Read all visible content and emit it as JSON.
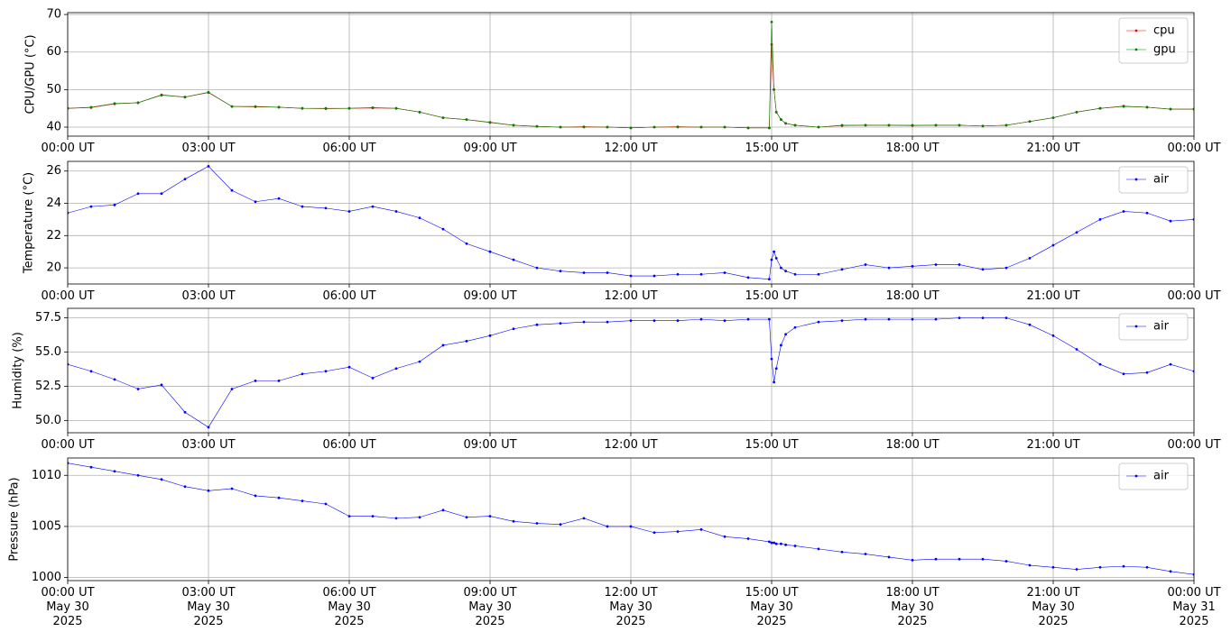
{
  "chart_data": [
    {
      "type": "line",
      "ylabel": "CPU/GPU (°C)",
      "x": [
        "2025-05-30 00:00",
        "2025-05-30 00:30",
        "2025-05-30 01:00",
        "2025-05-30 01:30",
        "2025-05-30 02:00",
        "2025-05-30 02:30",
        "2025-05-30 03:00",
        "2025-05-30 03:30",
        "2025-05-30 04:00",
        "2025-05-30 04:30",
        "2025-05-30 05:00",
        "2025-05-30 05:30",
        "2025-05-30 06:00",
        "2025-05-30 06:30",
        "2025-05-30 07:00",
        "2025-05-30 07:30",
        "2025-05-30 08:00",
        "2025-05-30 08:30",
        "2025-05-30 09:00",
        "2025-05-30 09:30",
        "2025-05-30 10:00",
        "2025-05-30 10:30",
        "2025-05-30 11:00",
        "2025-05-30 11:30",
        "2025-05-30 12:00",
        "2025-05-30 12:30",
        "2025-05-30 13:00",
        "2025-05-30 13:30",
        "2025-05-30 14:00",
        "2025-05-30 14:30",
        "2025-05-30 14:57",
        "2025-05-30 15:00",
        "2025-05-30 15:03",
        "2025-05-30 15:06",
        "2025-05-30 15:12",
        "2025-05-30 15:18",
        "2025-05-30 15:30",
        "2025-05-30 16:00",
        "2025-05-30 16:30",
        "2025-05-30 17:00",
        "2025-05-30 17:30",
        "2025-05-30 18:00",
        "2025-05-30 18:30",
        "2025-05-30 19:00",
        "2025-05-30 19:30",
        "2025-05-30 20:00",
        "2025-05-30 20:30",
        "2025-05-30 21:00",
        "2025-05-30 21:30",
        "2025-05-30 22:00",
        "2025-05-30 22:30",
        "2025-05-30 23:00",
        "2025-05-30 23:30",
        "2025-05-31 00:00"
      ],
      "xlim": [
        "2025-05-30 00:00",
        "2025-05-31 00:00"
      ],
      "xticks": [
        {
          "value": "2025-05-30 00:00",
          "label": "00:00 UT"
        },
        {
          "value": "2025-05-30 03:00",
          "label": "03:00 UT"
        },
        {
          "value": "2025-05-30 06:00",
          "label": "06:00 UT"
        },
        {
          "value": "2025-05-30 09:00",
          "label": "09:00 UT"
        },
        {
          "value": "2025-05-30 12:00",
          "label": "12:00 UT"
        },
        {
          "value": "2025-05-30 15:00",
          "label": "15:00 UT"
        },
        {
          "value": "2025-05-30 18:00",
          "label": "18:00 UT"
        },
        {
          "value": "2025-05-30 21:00",
          "label": "21:00 UT"
        },
        {
          "value": "2025-05-31 00:00",
          "label": "00:00 UT"
        }
      ],
      "ylim": [
        37.6,
        70.5
      ],
      "yticks": [
        40,
        50,
        60,
        70
      ],
      "grid": true,
      "legend": "upper right",
      "series": [
        {
          "name": "cpu",
          "color": "#ff0000",
          "values": [
            45,
            45.2,
            46.2,
            46.5,
            48.6,
            48,
            49.2,
            45.5,
            45.4,
            45.3,
            45,
            44.9,
            45,
            45.1,
            45,
            44,
            42.5,
            42,
            41.2,
            40.5,
            40.2,
            40,
            40.1,
            40,
            39.8,
            40,
            40.1,
            40,
            40,
            39.8,
            39.8,
            62,
            50,
            44,
            42,
            41,
            40.5,
            40,
            40.4,
            40.5,
            40.5,
            40.4,
            40.5,
            40.5,
            40.3,
            40.5,
            41.5,
            42.5,
            44,
            45,
            45.6,
            45.3,
            44.8,
            44.8
          ]
        },
        {
          "name": "gpu",
          "color": "#008000",
          "values": [
            45,
            45.3,
            46.3,
            46.5,
            48.5,
            48,
            49.3,
            45.5,
            45.5,
            45.3,
            45,
            45,
            45,
            45.2,
            45,
            44,
            42.5,
            42,
            41.3,
            40.5,
            40.2,
            40,
            40,
            40,
            39.8,
            40,
            40,
            40,
            40,
            39.8,
            39.8,
            68,
            50,
            44,
            42,
            41,
            40.5,
            40,
            40.5,
            40.5,
            40.5,
            40.5,
            40.5,
            40.5,
            40.3,
            40.5,
            41.5,
            42.5,
            44,
            45,
            45.5,
            45.3,
            44.8,
            44.8
          ]
        }
      ]
    },
    {
      "type": "line",
      "ylabel": "Temperature (°C)",
      "x": [
        "2025-05-30 00:00",
        "2025-05-30 00:30",
        "2025-05-30 01:00",
        "2025-05-30 01:30",
        "2025-05-30 02:00",
        "2025-05-30 02:30",
        "2025-05-30 03:00",
        "2025-05-30 03:30",
        "2025-05-30 04:00",
        "2025-05-30 04:30",
        "2025-05-30 05:00",
        "2025-05-30 05:30",
        "2025-05-30 06:00",
        "2025-05-30 06:30",
        "2025-05-30 07:00",
        "2025-05-30 07:30",
        "2025-05-30 08:00",
        "2025-05-30 08:30",
        "2025-05-30 09:00",
        "2025-05-30 09:30",
        "2025-05-30 10:00",
        "2025-05-30 10:30",
        "2025-05-30 11:00",
        "2025-05-30 11:30",
        "2025-05-30 12:00",
        "2025-05-30 12:30",
        "2025-05-30 13:00",
        "2025-05-30 13:30",
        "2025-05-30 14:00",
        "2025-05-30 14:30",
        "2025-05-30 14:57",
        "2025-05-30 15:00",
        "2025-05-30 15:03",
        "2025-05-30 15:06",
        "2025-05-30 15:12",
        "2025-05-30 15:18",
        "2025-05-30 15:30",
        "2025-05-30 16:00",
        "2025-05-30 16:30",
        "2025-05-30 17:00",
        "2025-05-30 17:30",
        "2025-05-30 18:00",
        "2025-05-30 18:30",
        "2025-05-30 19:00",
        "2025-05-30 19:30",
        "2025-05-30 20:00",
        "2025-05-30 20:30",
        "2025-05-30 21:00",
        "2025-05-30 21:30",
        "2025-05-30 22:00",
        "2025-05-30 22:30",
        "2025-05-30 23:00",
        "2025-05-30 23:30",
        "2025-05-31 00:00"
      ],
      "xlim": [
        "2025-05-30 00:00",
        "2025-05-31 00:00"
      ],
      "xticks": [
        {
          "value": "2025-05-30 00:00",
          "label": "00:00 UT"
        },
        {
          "value": "2025-05-30 03:00",
          "label": "03:00 UT"
        },
        {
          "value": "2025-05-30 06:00",
          "label": "06:00 UT"
        },
        {
          "value": "2025-05-30 09:00",
          "label": "09:00 UT"
        },
        {
          "value": "2025-05-30 12:00",
          "label": "12:00 UT"
        },
        {
          "value": "2025-05-30 15:00",
          "label": "15:00 UT"
        },
        {
          "value": "2025-05-30 18:00",
          "label": "18:00 UT"
        },
        {
          "value": "2025-05-30 21:00",
          "label": "21:00 UT"
        },
        {
          "value": "2025-05-31 00:00",
          "label": "00:00 UT"
        }
      ],
      "ylim": [
        19.0,
        26.6
      ],
      "yticks": [
        20,
        22,
        24,
        26
      ],
      "grid": true,
      "legend": "upper right",
      "series": [
        {
          "name": "air",
          "color": "#0000ff",
          "values": [
            23.4,
            23.8,
            23.9,
            24.6,
            24.6,
            25.5,
            26.3,
            24.8,
            24.1,
            24.3,
            23.8,
            23.7,
            23.5,
            23.8,
            23.5,
            23.1,
            22.4,
            21.5,
            21.0,
            20.5,
            20.0,
            19.8,
            19.7,
            19.7,
            19.5,
            19.5,
            19.6,
            19.6,
            19.7,
            19.4,
            19.3,
            20.5,
            21.0,
            20.6,
            20.0,
            19.8,
            19.6,
            19.6,
            19.9,
            20.2,
            20.0,
            20.1,
            20.2,
            20.2,
            19.9,
            20.0,
            20.6,
            21.4,
            22.2,
            23.0,
            23.5,
            23.4,
            22.9,
            23.0
          ]
        }
      ]
    },
    {
      "type": "line",
      "ylabel": "Humidity (%)",
      "x": [
        "2025-05-30 00:00",
        "2025-05-30 00:30",
        "2025-05-30 01:00",
        "2025-05-30 01:30",
        "2025-05-30 02:00",
        "2025-05-30 02:30",
        "2025-05-30 03:00",
        "2025-05-30 03:30",
        "2025-05-30 04:00",
        "2025-05-30 04:30",
        "2025-05-30 05:00",
        "2025-05-30 05:30",
        "2025-05-30 06:00",
        "2025-05-30 06:30",
        "2025-05-30 07:00",
        "2025-05-30 07:30",
        "2025-05-30 08:00",
        "2025-05-30 08:30",
        "2025-05-30 09:00",
        "2025-05-30 09:30",
        "2025-05-30 10:00",
        "2025-05-30 10:30",
        "2025-05-30 11:00",
        "2025-05-30 11:30",
        "2025-05-30 12:00",
        "2025-05-30 12:30",
        "2025-05-30 13:00",
        "2025-05-30 13:30",
        "2025-05-30 14:00",
        "2025-05-30 14:30",
        "2025-05-30 14:57",
        "2025-05-30 15:00",
        "2025-05-30 15:03",
        "2025-05-30 15:06",
        "2025-05-30 15:12",
        "2025-05-30 15:18",
        "2025-05-30 15:30",
        "2025-05-30 16:00",
        "2025-05-30 16:30",
        "2025-05-30 17:00",
        "2025-05-30 17:30",
        "2025-05-30 18:00",
        "2025-05-30 18:30",
        "2025-05-30 19:00",
        "2025-05-30 19:30",
        "2025-05-30 20:00",
        "2025-05-30 20:30",
        "2025-05-30 21:00",
        "2025-05-30 21:30",
        "2025-05-30 22:00",
        "2025-05-30 22:30",
        "2025-05-30 23:00",
        "2025-05-30 23:30",
        "2025-05-31 00:00"
      ],
      "xlim": [
        "2025-05-30 00:00",
        "2025-05-31 00:00"
      ],
      "xticks": [
        {
          "value": "2025-05-30 00:00",
          "label": "00:00 UT"
        },
        {
          "value": "2025-05-30 03:00",
          "label": "03:00 UT"
        },
        {
          "value": "2025-05-30 06:00",
          "label": "06:00 UT"
        },
        {
          "value": "2025-05-30 09:00",
          "label": "09:00 UT"
        },
        {
          "value": "2025-05-30 12:00",
          "label": "12:00 UT"
        },
        {
          "value": "2025-05-30 15:00",
          "label": "15:00 UT"
        },
        {
          "value": "2025-05-30 18:00",
          "label": "18:00 UT"
        },
        {
          "value": "2025-05-30 21:00",
          "label": "21:00 UT"
        },
        {
          "value": "2025-05-31 00:00",
          "label": "00:00 UT"
        }
      ],
      "ylim": [
        49.1,
        58.2
      ],
      "yticks": [
        {
          "value": 50,
          "label": "50.0"
        },
        52.5,
        {
          "value": 55,
          "label": "55.0"
        },
        57.5
      ],
      "grid": true,
      "legend": "upper right",
      "series": [
        {
          "name": "air",
          "color": "#0000ff",
          "values": [
            54.1,
            53.6,
            53.0,
            52.3,
            52.6,
            50.6,
            49.5,
            52.3,
            52.9,
            52.9,
            53.4,
            53.6,
            53.9,
            53.1,
            53.8,
            54.3,
            55.5,
            55.8,
            56.2,
            56.7,
            57.0,
            57.1,
            57.2,
            57.2,
            57.3,
            57.3,
            57.3,
            57.4,
            57.3,
            57.4,
            57.4,
            54.5,
            52.8,
            53.8,
            55.5,
            56.3,
            56.8,
            57.2,
            57.3,
            57.4,
            57.4,
            57.4,
            57.4,
            57.5,
            57.5,
            57.5,
            57.0,
            56.2,
            55.2,
            54.1,
            53.4,
            53.5,
            54.1,
            53.6
          ]
        }
      ]
    },
    {
      "type": "line",
      "ylabel": "Pressure (hPa)",
      "x": [
        "2025-05-30 00:00",
        "2025-05-30 00:30",
        "2025-05-30 01:00",
        "2025-05-30 01:30",
        "2025-05-30 02:00",
        "2025-05-30 02:30",
        "2025-05-30 03:00",
        "2025-05-30 03:30",
        "2025-05-30 04:00",
        "2025-05-30 04:30",
        "2025-05-30 05:00",
        "2025-05-30 05:30",
        "2025-05-30 06:00",
        "2025-05-30 06:30",
        "2025-05-30 07:00",
        "2025-05-30 07:30",
        "2025-05-30 08:00",
        "2025-05-30 08:30",
        "2025-05-30 09:00",
        "2025-05-30 09:30",
        "2025-05-30 10:00",
        "2025-05-30 10:30",
        "2025-05-30 11:00",
        "2025-05-30 11:30",
        "2025-05-30 12:00",
        "2025-05-30 12:30",
        "2025-05-30 13:00",
        "2025-05-30 13:30",
        "2025-05-30 14:00",
        "2025-05-30 14:30",
        "2025-05-30 14:57",
        "2025-05-30 15:00",
        "2025-05-30 15:03",
        "2025-05-30 15:06",
        "2025-05-30 15:12",
        "2025-05-30 15:18",
        "2025-05-30 15:30",
        "2025-05-30 16:00",
        "2025-05-30 16:30",
        "2025-05-30 17:00",
        "2025-05-30 17:30",
        "2025-05-30 18:00",
        "2025-05-30 18:30",
        "2025-05-30 19:00",
        "2025-05-30 19:30",
        "2025-05-30 20:00",
        "2025-05-30 20:30",
        "2025-05-30 21:00",
        "2025-05-30 21:30",
        "2025-05-30 22:00",
        "2025-05-30 22:30",
        "2025-05-30 23:00",
        "2025-05-30 23:30",
        "2025-05-31 00:00"
      ],
      "xlim": [
        "2025-05-30 00:00",
        "2025-05-31 00:00"
      ],
      "xticks": [
        {
          "value": "2025-05-30 00:00",
          "label": "00:00 UT\nMay 30\n2025"
        },
        {
          "value": "2025-05-30 03:00",
          "label": "03:00 UT\nMay 30\n2025"
        },
        {
          "value": "2025-05-30 06:00",
          "label": "06:00 UT\nMay 30\n2025"
        },
        {
          "value": "2025-05-30 09:00",
          "label": "09:00 UT\nMay 30\n2025"
        },
        {
          "value": "2025-05-30 12:00",
          "label": "12:00 UT\nMay 30\n2025"
        },
        {
          "value": "2025-05-30 15:00",
          "label": "15:00 UT\nMay 30\n2025"
        },
        {
          "value": "2025-05-30 18:00",
          "label": "18:00 UT\nMay 30\n2025"
        },
        {
          "value": "2025-05-30 21:00",
          "label": "21:00 UT\nMay 30\n2025"
        },
        {
          "value": "2025-05-31 00:00",
          "label": "00:00 UT\nMay 31\n2025"
        }
      ],
      "ylim": [
        999.7,
        1011.7
      ],
      "yticks": [
        1000,
        1005,
        1010
      ],
      "grid": true,
      "legend": "upper right",
      "series": [
        {
          "name": "air",
          "color": "#0000ff",
          "values": [
            1011.2,
            1010.8,
            1010.4,
            1010.0,
            1009.6,
            1008.9,
            1008.5,
            1008.7,
            1008.0,
            1007.8,
            1007.5,
            1007.2,
            1006.0,
            1006.0,
            1005.8,
            1005.9,
            1006.6,
            1005.9,
            1006.0,
            1005.5,
            1005.3,
            1005.2,
            1005.8,
            1005.0,
            1005.0,
            1004.4,
            1004.5,
            1004.7,
            1004.0,
            1003.8,
            1003.5,
            1003.4,
            1003.4,
            1003.3,
            1003.3,
            1003.2,
            1003.1,
            1002.8,
            1002.5,
            1002.3,
            1002.0,
            1001.7,
            1001.8,
            1001.8,
            1001.8,
            1001.6,
            1001.2,
            1001.0,
            1000.8,
            1001.0,
            1001.1,
            1001.0,
            1000.6,
            1000.3
          ]
        }
      ]
    }
  ]
}
